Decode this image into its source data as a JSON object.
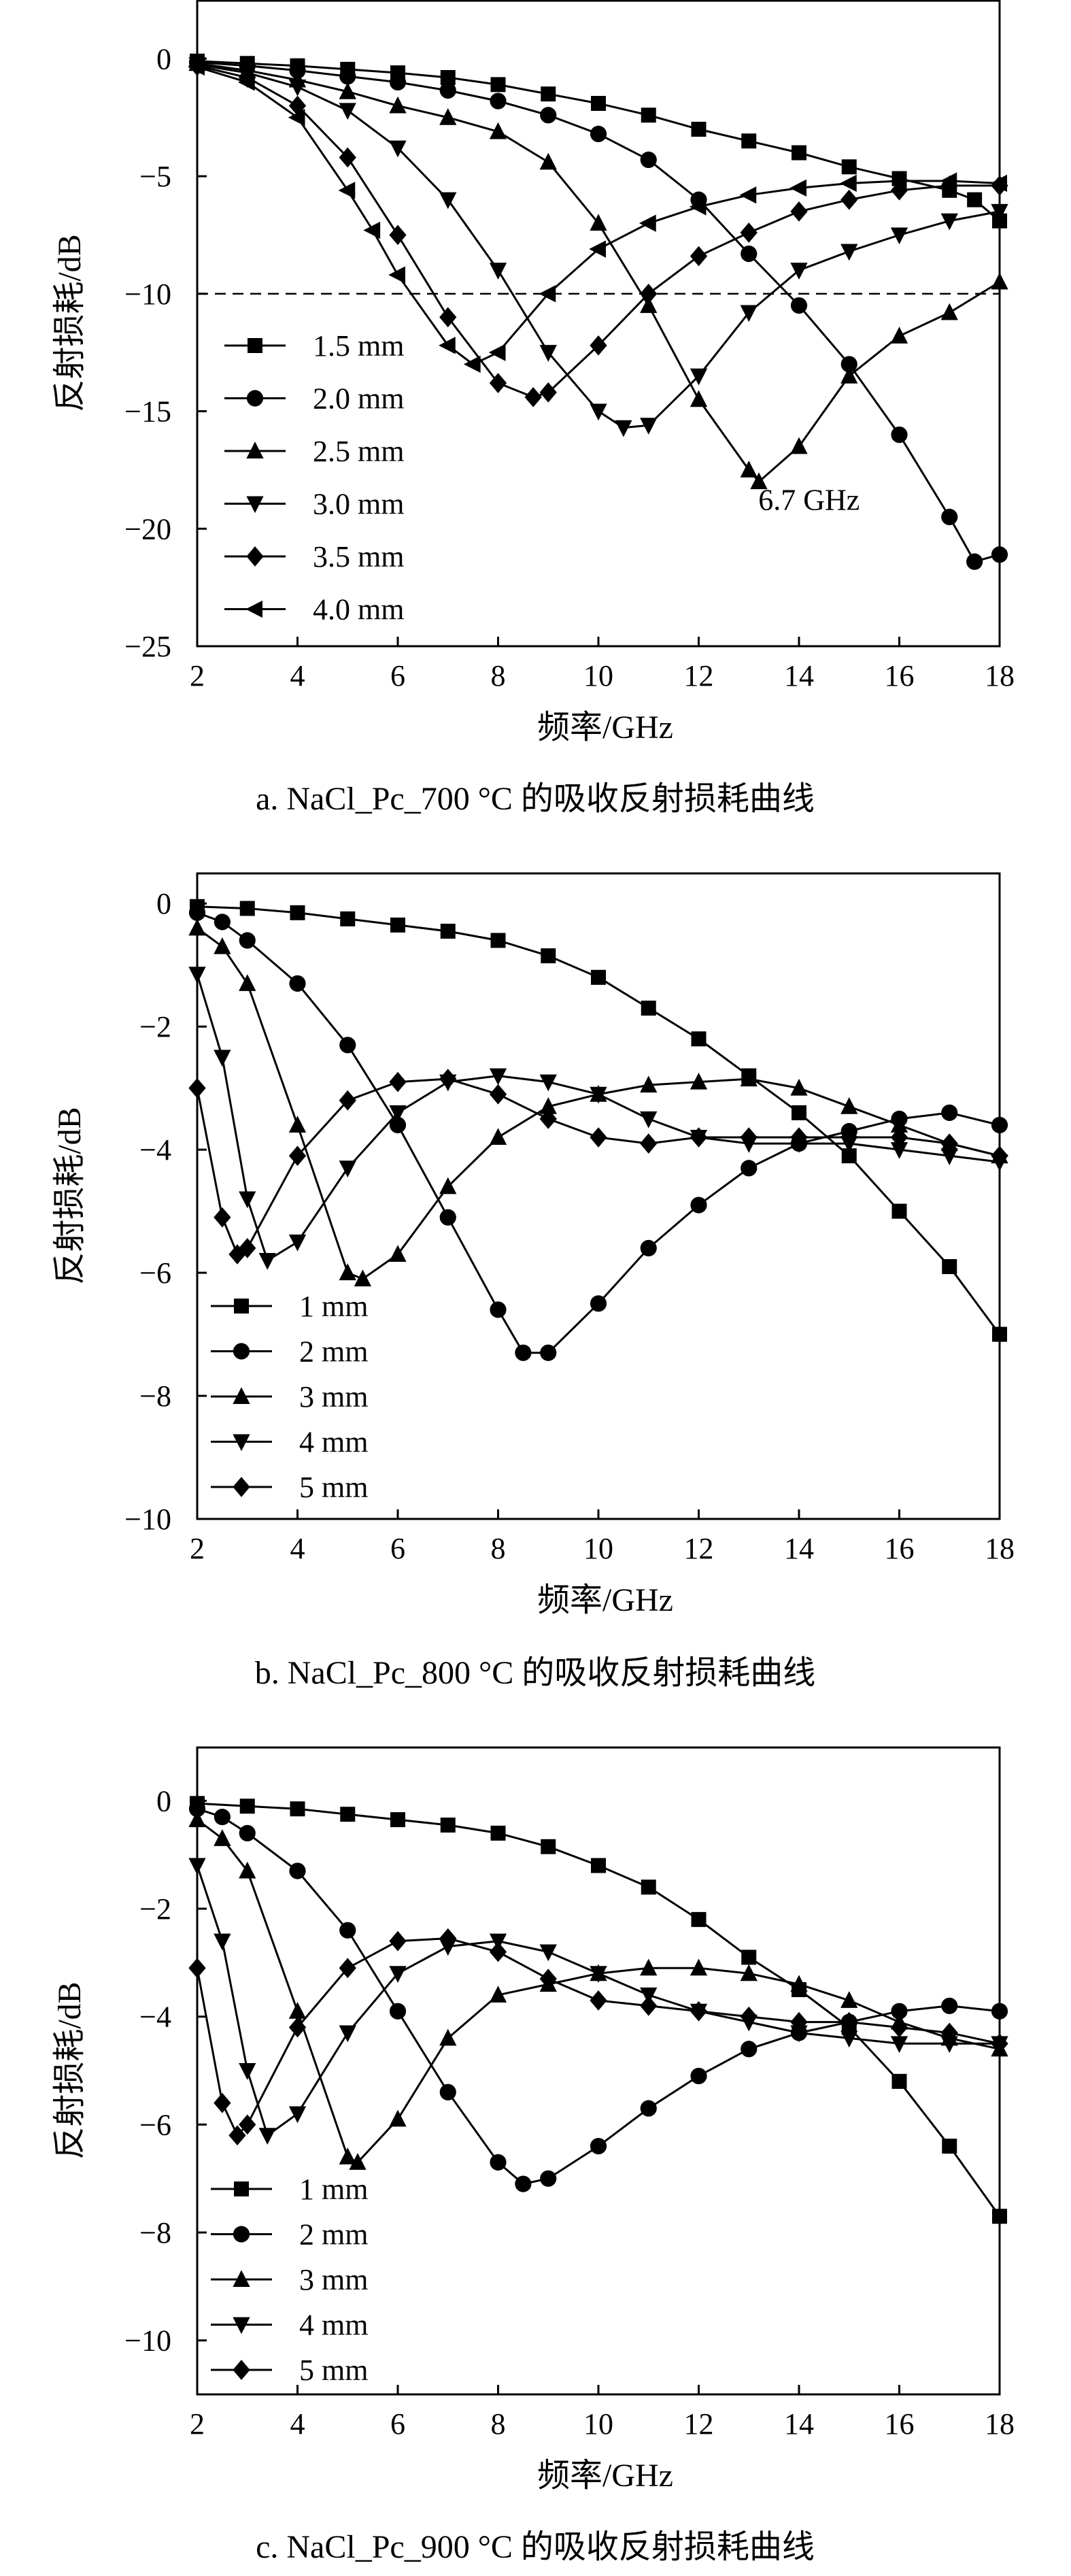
{
  "chart_data": [
    {
      "type": "line",
      "caption": "a. NaCl_Pc_700 °C 的吸收反射损耗曲线",
      "xlabel": "频率/GHz",
      "ylabel": "反射损耗/dB",
      "xlim": [
        2,
        18
      ],
      "ylim": [
        -25,
        2.5
      ],
      "xticks": [
        2,
        4,
        6,
        8,
        10,
        12,
        14,
        16,
        18
      ],
      "yticks": [
        0,
        -5,
        -10,
        -15,
        -20,
        -25
      ],
      "reference_line": -10,
      "annotations": [
        {
          "text": "6.7 GHz",
          "x": 14.2,
          "y": -19.2
        }
      ],
      "legend": "lower-left",
      "grid": false,
      "series": [
        {
          "name": "1.5 mm",
          "marker": "square",
          "x": [
            2,
            3,
            4,
            5,
            6,
            7,
            8,
            9,
            10,
            11,
            12,
            13,
            14,
            15,
            16,
            17,
            17.5,
            18
          ],
          "y": [
            -0.1,
            -0.2,
            -0.3,
            -0.45,
            -0.6,
            -0.8,
            -1.1,
            -1.5,
            -1.9,
            -2.4,
            -3.0,
            -3.5,
            -4.0,
            -4.6,
            -5.1,
            -5.6,
            -6.0,
            -6.9
          ]
        },
        {
          "name": "2.0 mm",
          "marker": "circle",
          "x": [
            2,
            3,
            4,
            5,
            6,
            7,
            8,
            9,
            10,
            11,
            12,
            13,
            14,
            15,
            16,
            17,
            17.5,
            18
          ],
          "y": [
            -0.15,
            -0.3,
            -0.5,
            -0.75,
            -1.0,
            -1.35,
            -1.8,
            -2.4,
            -3.2,
            -4.3,
            -6.0,
            -8.3,
            -10.5,
            -13.0,
            -16.0,
            -19.5,
            -21.4,
            -21.1
          ]
        },
        {
          "name": "2.5 mm",
          "marker": "triangle-up",
          "x": [
            2,
            3,
            4,
            5,
            6,
            7,
            8,
            9,
            10,
            11,
            12,
            13,
            13.2,
            14,
            15,
            16,
            17,
            18
          ],
          "y": [
            -0.2,
            -0.5,
            -0.9,
            -1.4,
            -2.0,
            -2.5,
            -3.1,
            -4.4,
            -7.0,
            -10.5,
            -14.5,
            -17.5,
            -18.0,
            -16.5,
            -13.5,
            -11.8,
            -10.8,
            -9.5
          ]
        },
        {
          "name": "3.0 mm",
          "marker": "triangle-down",
          "x": [
            2,
            3,
            4,
            5,
            6,
            7,
            8,
            9,
            10,
            10.5,
            11,
            12,
            13,
            14,
            15,
            16,
            17,
            18
          ],
          "y": [
            -0.25,
            -0.6,
            -1.2,
            -2.2,
            -3.8,
            -6.0,
            -9.0,
            -12.5,
            -15.0,
            -15.7,
            -15.6,
            -13.5,
            -10.8,
            -9.0,
            -8.2,
            -7.5,
            -6.9,
            -6.5
          ]
        },
        {
          "name": "3.5 mm",
          "marker": "diamond",
          "x": [
            2,
            3,
            4,
            5,
            6,
            7,
            8,
            8.7,
            9,
            10,
            11,
            12,
            13,
            14,
            15,
            16,
            17,
            18
          ],
          "y": [
            -0.3,
            -0.8,
            -2.0,
            -4.2,
            -7.5,
            -11.0,
            -13.8,
            -14.4,
            -14.2,
            -12.2,
            -10.0,
            -8.4,
            -7.4,
            -6.5,
            -6.0,
            -5.6,
            -5.4,
            -5.4
          ]
        },
        {
          "name": "4.0 mm",
          "marker": "triangle-left",
          "x": [
            2,
            3,
            4,
            5,
            5.5,
            6,
            7,
            7.5,
            8,
            9,
            10,
            11,
            12,
            13,
            14,
            15,
            16,
            17,
            18
          ],
          "y": [
            -0.35,
            -1.0,
            -2.5,
            -5.6,
            -7.3,
            -9.2,
            -12.2,
            -13.0,
            -12.5,
            -10.0,
            -8.1,
            -7.0,
            -6.3,
            -5.8,
            -5.5,
            -5.3,
            -5.2,
            -5.2,
            -5.3
          ]
        }
      ]
    },
    {
      "type": "line",
      "caption": "b. NaCl_Pc_800 °C 的吸收反射损耗曲线",
      "xlabel": "频率/GHz",
      "ylabel": "反射损耗/dB",
      "xlim": [
        2,
        18
      ],
      "ylim": [
        -10,
        0.5
      ],
      "xticks": [
        2,
        4,
        6,
        8,
        10,
        12,
        14,
        16,
        18
      ],
      "yticks": [
        0,
        -2,
        -4,
        -6,
        -8,
        -10
      ],
      "legend": "lower-left",
      "grid": false,
      "series": [
        {
          "name": "1 mm",
          "marker": "square",
          "x": [
            2,
            3,
            4,
            5,
            6,
            7,
            8,
            9,
            10,
            11,
            12,
            13,
            14,
            15,
            16,
            17,
            18
          ],
          "y": [
            -0.05,
            -0.08,
            -0.15,
            -0.25,
            -0.35,
            -0.45,
            -0.6,
            -0.85,
            -1.2,
            -1.7,
            -2.2,
            -2.8,
            -3.4,
            -4.1,
            -5.0,
            -5.9,
            -7.0
          ]
        },
        {
          "name": "2 mm",
          "marker": "circle",
          "x": [
            2,
            2.5,
            3,
            4,
            5,
            6,
            7,
            8,
            8.5,
            9,
            10,
            11,
            12,
            13,
            14,
            15,
            16,
            17,
            18
          ],
          "y": [
            -0.15,
            -0.3,
            -0.6,
            -1.3,
            -2.3,
            -3.6,
            -5.1,
            -6.6,
            -7.3,
            -7.3,
            -6.5,
            -5.6,
            -4.9,
            -4.3,
            -3.9,
            -3.7,
            -3.5,
            -3.4,
            -3.6
          ]
        },
        {
          "name": "3 mm",
          "marker": "triangle-up",
          "x": [
            2,
            2.5,
            3,
            4,
            5,
            5.3,
            6,
            7,
            8,
            9,
            10,
            11,
            12,
            13,
            14,
            15,
            16,
            17,
            18
          ],
          "y": [
            -0.4,
            -0.7,
            -1.3,
            -3.6,
            -6.0,
            -6.1,
            -5.7,
            -4.6,
            -3.8,
            -3.3,
            -3.1,
            -2.95,
            -2.9,
            -2.85,
            -3.0,
            -3.3,
            -3.6,
            -3.9,
            -4.1
          ]
        },
        {
          "name": "4 mm",
          "marker": "triangle-down",
          "x": [
            2,
            2.5,
            3,
            3.4,
            4,
            5,
            6,
            7,
            8,
            9,
            10,
            11,
            12,
            13,
            14,
            15,
            16,
            17,
            18
          ],
          "y": [
            -1.15,
            -2.5,
            -4.8,
            -5.8,
            -5.5,
            -4.3,
            -3.4,
            -2.9,
            -2.8,
            -2.9,
            -3.1,
            -3.5,
            -3.8,
            -3.9,
            -3.9,
            -3.9,
            -4.0,
            -4.1,
            -4.2
          ]
        },
        {
          "name": "5 mm",
          "marker": "diamond",
          "x": [
            2,
            2.5,
            2.8,
            3,
            4,
            5,
            6,
            7,
            8,
            9,
            10,
            11,
            12,
            13,
            14,
            15,
            16,
            17,
            18
          ],
          "y": [
            -3.0,
            -5.1,
            -5.7,
            -5.6,
            -4.1,
            -3.2,
            -2.9,
            -2.85,
            -3.1,
            -3.5,
            -3.8,
            -3.9,
            -3.8,
            -3.8,
            -3.8,
            -3.8,
            -3.8,
            -3.9,
            -4.1
          ]
        }
      ]
    },
    {
      "type": "line",
      "caption": "c. NaCl_Pc_900 °C 的吸收反射损耗曲线",
      "xlabel": "频率/GHz",
      "ylabel": "反射损耗/dB",
      "xlim": [
        2,
        18
      ],
      "ylim": [
        -11,
        1
      ],
      "xticks": [
        2,
        4,
        6,
        8,
        10,
        12,
        14,
        16,
        18
      ],
      "yticks": [
        0,
        -2,
        -4,
        -6,
        -8,
        -10
      ],
      "legend": "lower-left",
      "grid": false,
      "series": [
        {
          "name": "1 mm",
          "marker": "square",
          "x": [
            2,
            3,
            4,
            5,
            6,
            7,
            8,
            9,
            10,
            11,
            12,
            13,
            14,
            15,
            16,
            17,
            18
          ],
          "y": [
            -0.05,
            -0.1,
            -0.15,
            -0.25,
            -0.35,
            -0.45,
            -0.6,
            -0.85,
            -1.2,
            -1.6,
            -2.2,
            -2.9,
            -3.5,
            -4.2,
            -5.2,
            -6.4,
            -7.7
          ]
        },
        {
          "name": "2 mm",
          "marker": "circle",
          "x": [
            2,
            2.5,
            3,
            4,
            5,
            6,
            7,
            8,
            8.5,
            9,
            10,
            11,
            12,
            13,
            14,
            15,
            16,
            17,
            18
          ],
          "y": [
            -0.15,
            -0.3,
            -0.6,
            -1.3,
            -2.4,
            -3.9,
            -5.4,
            -6.7,
            -7.1,
            -7.0,
            -6.4,
            -5.7,
            -5.1,
            -4.6,
            -4.3,
            -4.1,
            -3.9,
            -3.8,
            -3.9
          ]
        },
        {
          "name": "3 mm",
          "marker": "triangle-up",
          "x": [
            2,
            2.5,
            3,
            4,
            5,
            5.2,
            6,
            7,
            8,
            9,
            10,
            11,
            12,
            13,
            14,
            15,
            16,
            17,
            18
          ],
          "y": [
            -0.35,
            -0.7,
            -1.3,
            -3.9,
            -6.6,
            -6.7,
            -5.9,
            -4.4,
            -3.6,
            -3.4,
            -3.2,
            -3.1,
            -3.1,
            -3.2,
            -3.4,
            -3.7,
            -4.1,
            -4.4,
            -4.6
          ]
        },
        {
          "name": "4 mm",
          "marker": "triangle-down",
          "x": [
            2,
            2.5,
            3,
            3.4,
            4,
            5,
            6,
            7,
            8,
            9,
            10,
            11,
            12,
            13,
            14,
            15,
            16,
            17,
            18
          ],
          "y": [
            -1.2,
            -2.6,
            -5.0,
            -6.2,
            -5.8,
            -4.3,
            -3.2,
            -2.7,
            -2.6,
            -2.8,
            -3.2,
            -3.6,
            -3.9,
            -4.1,
            -4.3,
            -4.4,
            -4.5,
            -4.5,
            -4.5
          ]
        },
        {
          "name": "5 mm",
          "marker": "diamond",
          "x": [
            2,
            2.5,
            2.8,
            3,
            4,
            5,
            6,
            7,
            8,
            9,
            10,
            11,
            12,
            13,
            14,
            15,
            16,
            17,
            18
          ],
          "y": [
            -3.1,
            -5.6,
            -6.2,
            -6.0,
            -4.2,
            -3.1,
            -2.6,
            -2.55,
            -2.8,
            -3.3,
            -3.7,
            -3.8,
            -3.9,
            -4.0,
            -4.1,
            -4.1,
            -4.2,
            -4.3,
            -4.5
          ]
        }
      ]
    }
  ]
}
